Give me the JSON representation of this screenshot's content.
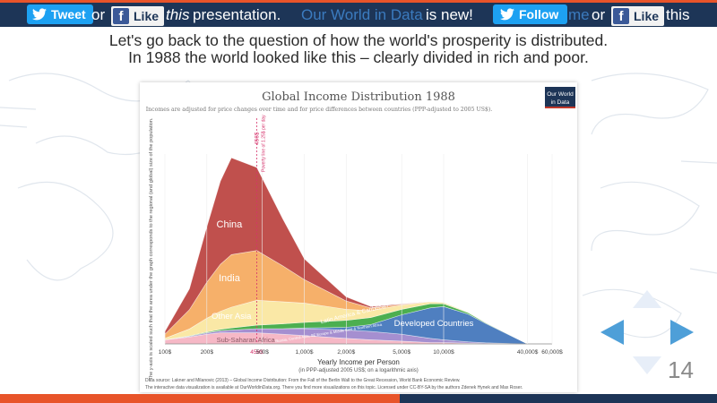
{
  "topbar": {
    "tweet_label": "Tweet",
    "or_1": "or",
    "like_label_1": "Like",
    "this_word": "this",
    "presentation_text": "presentation.",
    "owid_link": "Our World in Data",
    "is_new": "is new!",
    "follow_label": "Follow",
    "me_text": "me",
    "or_2": "or",
    "like_label_2": "Like",
    "this_text": "this"
  },
  "heading": {
    "line1": "Let's go back to the question of how the world's prosperity is distributed.",
    "line2": "In 1988 the world looked like this – clearly divided in rich and poor."
  },
  "slide_number": "14",
  "colors": {
    "accent_orange": "#e8542a",
    "navy": "#1d3557",
    "twitter_blue": "#1da1f2",
    "facebook_blue": "#3b5998"
  },
  "chart_data": {
    "type": "area",
    "title": "Global Income Distribution 1988",
    "subtitle": "Incomes are adjusted for price changes over time and for price differences between countries (PPP-adjusted to 2005 US$).",
    "logo_text": "Our World in Data",
    "ylabel": "The y-axis is scaled such that the area under the graph corresponds to the regional (and global) size of the population.",
    "xlabel": "Yearly Income per Person",
    "xlabel_note": "(in PPP-adjusted 2005 US$; on a logarithmic axis)",
    "x_scale": "log",
    "x_ticks": [
      100,
      200,
      456,
      500,
      1000,
      2000,
      5000,
      10000,
      40000,
      60000
    ],
    "x_tick_labels": [
      "100$",
      "200$",
      "456$",
      "500$",
      "1,000$",
      "2,000$",
      "5,000$",
      "10,000$",
      "40,000$",
      "60,000$"
    ],
    "poverty_line": {
      "value": 456,
      "label": "456$",
      "text": "Poverty line of 1.25$ per day"
    },
    "x": [
      100,
      150,
      200,
      250,
      300,
      456,
      700,
      1000,
      2000,
      3000,
      5000,
      8000,
      10000,
      15000,
      20000,
      40000
    ],
    "series": [
      {
        "name": "Sub-Saharan Africa",
        "color": "#f6b8c6",
        "values": [
          3,
          5,
          7,
          8,
          8,
          8,
          7,
          6,
          4,
          3,
          2,
          1,
          1,
          0.5,
          0.3,
          0
        ]
      },
      {
        "name": "Russia, Central Asia, SE Europe & Middle East & Northern Africa",
        "color": "#a58fd0",
        "values": [
          0,
          0.5,
          1,
          1.5,
          2,
          3,
          4,
          5,
          6,
          6,
          5,
          3,
          2,
          1,
          0.5,
          0
        ]
      },
      {
        "name": "Developed Countries",
        "color": "#4f7fc0",
        "values": [
          0,
          0,
          0,
          0,
          0,
          0,
          0,
          0.5,
          2,
          5,
          14,
          22,
          24,
          20,
          14,
          0
        ]
      },
      {
        "name": "Latin America & Caribbean",
        "color": "#4caf50",
        "values": [
          0,
          0.3,
          0.6,
          1,
          1.5,
          2.5,
          3.5,
          4,
          5,
          5,
          4,
          3,
          2,
          1,
          0.5,
          0
        ]
      },
      {
        "name": "Other Asia",
        "color": "#fae8a6",
        "values": [
          1,
          5,
          10,
          13,
          15,
          18,
          16,
          14,
          8,
          5,
          3,
          1.5,
          1,
          0.5,
          0.2,
          0
        ]
      },
      {
        "name": "India",
        "color": "#f6b06a",
        "values": [
          3,
          14,
          26,
          34,
          38,
          36,
          26,
          17,
          6,
          2,
          0.5,
          0,
          0,
          0,
          0,
          0
        ]
      },
      {
        "name": "China",
        "color": "#c0504d",
        "values": [
          2,
          15,
          40,
          60,
          70,
          60,
          34,
          15,
          3,
          1,
          0.3,
          0,
          0,
          0,
          0,
          0
        ]
      }
    ],
    "area_labels": [
      "China",
      "India",
      "Other Asia",
      "Latin America & Caribbean",
      "Russia, Central Asia, SE Europe & Middle East & Northern Africa",
      "Developed Countries",
      "Sub-Saharan Africa"
    ],
    "source_line1": "Data source: Lakner and Milanovic (2013) – Global Income Distribution: From the Fall of the Berlin Wall to the Great Recession, World Bank Economic Review.",
    "source_line2": "The interactive data visualization is available at OurWorldinData.org. There you find more visualizations on this topic.          Licensed under CC-BY-SA by the authors Zdenek Hynek and Max Roser."
  }
}
